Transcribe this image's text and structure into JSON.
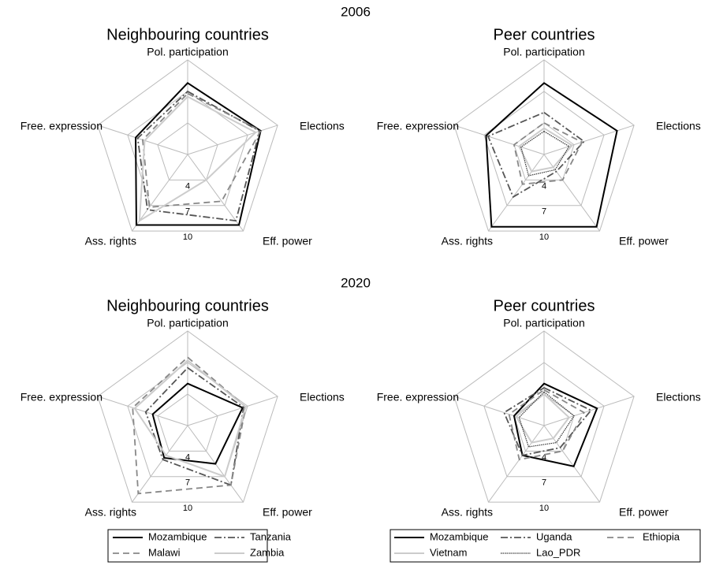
{
  "headings": [
    "2006",
    "2020"
  ],
  "chart_data": [
    {
      "type": "radar",
      "title": "Neighbouring countries",
      "categories": [
        "Pol. participation",
        "Elections",
        "Eff. power",
        "Ass. rights",
        "Free. expression"
      ],
      "rlim": [
        1,
        10
      ],
      "rticks": [
        4,
        7,
        10
      ],
      "series": [
        {
          "name": "Mozambique",
          "color": "#000000",
          "dash": "solid",
          "values": [
            [
              7.8,
              8.3,
              9.3,
              9.3,
              6.2
            ],
            [
              5.0,
              6.5,
              5.5,
              4.8,
              4.5
            ]
          ]
        },
        {
          "name": "Tanzania",
          "color": "#555555",
          "dash": "dashdot",
          "values": [
            [
              7.0,
              8.2,
              8.8,
              7.5,
              6.0
            ],
            [
              6.5,
              6.6,
              8.0,
              5.0,
              5.2
            ]
          ]
        },
        {
          "name": "Malawi",
          "color": "#888888",
          "dash": "dashed",
          "values": [
            [
              6.8,
              8.3,
              6.5,
              7.2,
              5.5
            ],
            [
              7.5,
              6.8,
              8.0,
              9.0,
              6.5
            ]
          ]
        },
        {
          "name": "Zambia",
          "color": "#cccccc",
          "dash": "solid",
          "values": [
            [
              6.5,
              7.8,
              4.0,
              8.8,
              5.3
            ],
            [
              7.2,
              6.8,
              7.0,
              4.5,
              6.3
            ]
          ]
        }
      ]
    },
    {
      "type": "radar",
      "title": "Peer countries",
      "categories": [
        "Pol. participation",
        "Elections",
        "Eff. power",
        "Ass. rights",
        "Free. expression"
      ],
      "rlim": [
        1,
        10
      ],
      "rticks": [
        4,
        7,
        10
      ],
      "series": [
        {
          "name": "Mozambique",
          "color": "#000000",
          "dash": "solid",
          "values": [
            [
              7.8,
              8.3,
              9.5,
              9.5,
              6.8
            ],
            [
              5.0,
              6.3,
              5.8,
              4.5,
              4.0
            ]
          ]
        },
        {
          "name": "Uganda",
          "color": "#555555",
          "dash": "dashdot",
          "values": [
            [
              5.0,
              5.0,
              3.0,
              6.0,
              6.6
            ],
            [
              4.6,
              5.7,
              3.6,
              4.5,
              5.0
            ]
          ]
        },
        {
          "name": "Ethiopia",
          "color": "#888888",
          "dash": "dashed",
          "values": [
            [
              4.0,
              4.8,
              4.0,
              4.5,
              4.0
            ],
            [
              4.4,
              5.0,
              4.0,
              5.0,
              4.5
            ]
          ]
        },
        {
          "name": "Vietnam",
          "color": "#cccccc",
          "dash": "solid",
          "values": [
            [
              3.5,
              3.8,
              2.5,
              3.0,
              3.5
            ],
            [
              4.0,
              3.5,
              2.5,
              3.0,
              3.8
            ]
          ]
        },
        {
          "name": "Lao_PDR",
          "color": "#333333",
          "dash": "dotted",
          "values": [
            [
              3.2,
              3.5,
              2.8,
              3.5,
              3.3
            ],
            [
              4.2,
              4.0,
              3.0,
              3.5,
              3.5
            ]
          ]
        }
      ]
    }
  ]
}
